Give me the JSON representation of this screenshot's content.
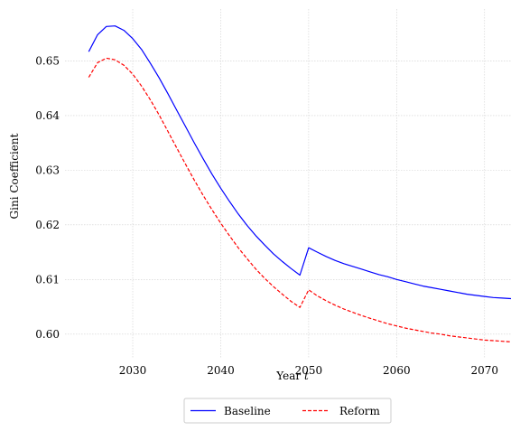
{
  "chart_data": {
    "type": "line",
    "title": "",
    "xlabel": "Year",
    "xlabel_italic": "t",
    "ylabel": "Gini Coefficient",
    "xlim": [
      2022.3,
      2073
    ],
    "ylim": [
      0.5955,
      0.6595
    ],
    "xticks": [
      2030,
      2040,
      2050,
      2060,
      2070
    ],
    "yticks": [
      0.6,
      0.61,
      0.62,
      0.63,
      0.64,
      0.65
    ],
    "grid": true,
    "legend_placement": "bottom-center",
    "series": [
      {
        "name": "Baseline",
        "color": "#0000ff",
        "style": "solid",
        "x": [
          2025,
          2026,
          2027,
          2028,
          2029,
          2030,
          2031,
          2032,
          2033,
          2034,
          2035,
          2036,
          2037,
          2038,
          2039,
          2040,
          2041,
          2042,
          2043,
          2044,
          2045,
          2046,
          2047,
          2048,
          2049,
          2050,
          2051,
          2052,
          2053,
          2054,
          2055,
          2056,
          2057,
          2058,
          2059,
          2060,
          2061,
          2062,
          2063,
          2064,
          2065,
          2066,
          2067,
          2068,
          2069,
          2070,
          2071,
          2072,
          2073
        ],
        "y": [
          0.6517,
          0.6548,
          0.6563,
          0.6564,
          0.6556,
          0.6541,
          0.6521,
          0.6496,
          0.6469,
          0.644,
          0.641,
          0.638,
          0.635,
          0.6321,
          0.6293,
          0.6267,
          0.6243,
          0.622,
          0.6199,
          0.618,
          0.6163,
          0.6147,
          0.6133,
          0.612,
          0.6108,
          0.6158,
          0.615,
          0.6142,
          0.6135,
          0.6129,
          0.6124,
          0.6119,
          0.6114,
          0.6109,
          0.6105,
          0.61,
          0.6096,
          0.6092,
          0.6088,
          0.6085,
          0.6082,
          0.6079,
          0.6076,
          0.6073,
          0.6071,
          0.6069,
          0.6067,
          0.6066,
          0.6065
        ]
      },
      {
        "name": "Reform",
        "color": "#ff0000",
        "style": "dashed",
        "x": [
          2025,
          2026,
          2027,
          2028,
          2029,
          2030,
          2031,
          2032,
          2033,
          2034,
          2035,
          2036,
          2037,
          2038,
          2039,
          2040,
          2041,
          2042,
          2043,
          2044,
          2045,
          2046,
          2047,
          2048,
          2049,
          2050,
          2051,
          2052,
          2053,
          2054,
          2055,
          2056,
          2057,
          2058,
          2059,
          2060,
          2061,
          2062,
          2063,
          2064,
          2065,
          2066,
          2067,
          2068,
          2069,
          2070,
          2071,
          2072,
          2073
        ],
        "y": [
          0.647,
          0.6497,
          0.6505,
          0.6502,
          0.6492,
          0.6476,
          0.6454,
          0.6429,
          0.6401,
          0.6371,
          0.6341,
          0.6311,
          0.6282,
          0.6254,
          0.6228,
          0.6203,
          0.618,
          0.6158,
          0.6138,
          0.6119,
          0.6102,
          0.6087,
          0.6073,
          0.606,
          0.6049,
          0.6081,
          0.607,
          0.6061,
          0.6053,
          0.6046,
          0.604,
          0.6034,
          0.6029,
          0.6024,
          0.6019,
          0.6015,
          0.6011,
          0.6008,
          0.6005,
          0.6002,
          0.6,
          0.5997,
          0.5995,
          0.5993,
          0.5991,
          0.5989,
          0.5988,
          0.5987,
          0.5986
        ]
      }
    ]
  }
}
